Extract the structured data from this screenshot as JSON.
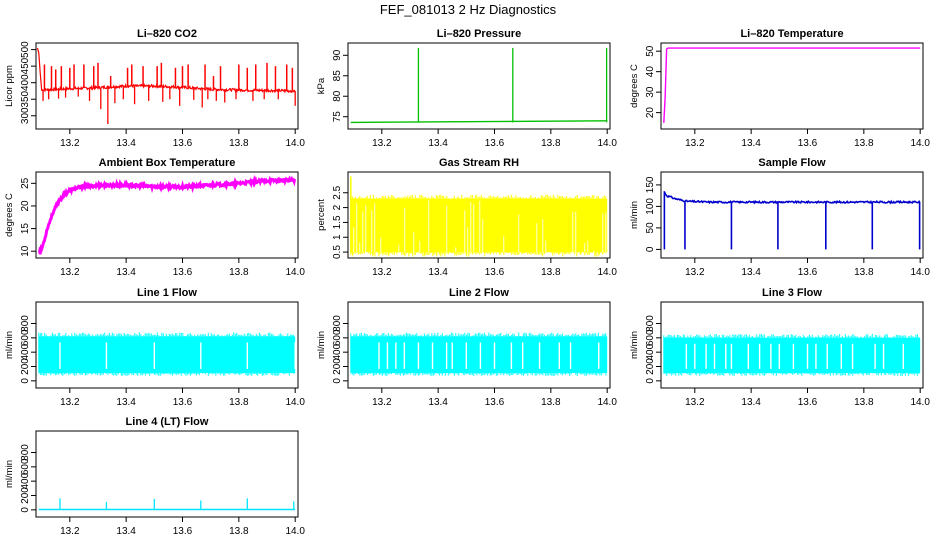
{
  "figure_title": "FEF_081013  2 Hz Diagnostics",
  "chart_data": [
    {
      "name": "li820-co2-panel",
      "type": "line",
      "title": "Li–820 CO2",
      "ylabel": "Licor ppm",
      "color": "#ff0000",
      "xlim": [
        13.08,
        14.01
      ],
      "ylim": [
        260,
        520
      ],
      "x_ticks": [
        13.2,
        13.4,
        13.6,
        13.8,
        14.0
      ],
      "x_tick_labels": [
        "13.2",
        "13.4",
        "13.6",
        "13.8",
        "14.0"
      ],
      "y_ticks": [
        300,
        350,
        400,
        450,
        500
      ],
      "y_tick_labels": [
        "300",
        "350",
        "400",
        "450",
        "500"
      ],
      "series": {
        "start": [
          [
            13.085,
            505
          ],
          [
            13.09,
            490
          ],
          [
            13.095,
            430
          ],
          [
            13.1,
            380
          ]
        ],
        "baseline": [
          [
            13.1,
            378
          ],
          [
            13.2,
            382
          ],
          [
            13.3,
            385
          ],
          [
            13.4,
            390
          ],
          [
            13.5,
            390
          ],
          [
            13.6,
            386
          ],
          [
            13.7,
            380
          ],
          [
            13.8,
            378
          ],
          [
            14.0,
            375
          ]
        ],
        "spikes": [
          [
            13.11,
            455
          ],
          [
            13.135,
            450
          ],
          [
            13.15,
            440
          ],
          [
            13.17,
            450
          ],
          [
            13.2,
            445
          ],
          [
            13.215,
            455
          ],
          [
            13.25,
            455
          ],
          [
            13.285,
            450
          ],
          [
            13.3,
            460
          ],
          [
            13.345,
            420
          ],
          [
            13.405,
            445
          ],
          [
            13.42,
            455
          ],
          [
            13.46,
            450
          ],
          [
            13.51,
            450
          ],
          [
            13.525,
            460
          ],
          [
            13.575,
            445
          ],
          [
            13.6,
            450
          ],
          [
            13.62,
            455
          ],
          [
            13.68,
            455
          ],
          [
            13.71,
            420
          ],
          [
            13.735,
            450
          ],
          [
            13.8,
            455
          ],
          [
            13.83,
            445
          ],
          [
            13.86,
            455
          ],
          [
            13.9,
            460
          ],
          [
            13.93,
            450
          ],
          [
            13.97,
            455
          ],
          [
            13.99,
            445
          ]
        ],
        "dips": [
          [
            13.105,
            345
          ],
          [
            13.125,
            350
          ],
          [
            13.16,
            352
          ],
          [
            13.185,
            355
          ],
          [
            13.23,
            358
          ],
          [
            13.27,
            345
          ],
          [
            13.31,
            320
          ],
          [
            13.335,
            275
          ],
          [
            13.36,
            338
          ],
          [
            13.39,
            350
          ],
          [
            13.43,
            335
          ],
          [
            13.48,
            345
          ],
          [
            13.53,
            342
          ],
          [
            13.555,
            350
          ],
          [
            13.59,
            330
          ],
          [
            13.64,
            348
          ],
          [
            13.67,
            325
          ],
          [
            13.69,
            350
          ],
          [
            13.72,
            345
          ],
          [
            13.75,
            340
          ],
          [
            13.79,
            350
          ],
          [
            13.85,
            345
          ],
          [
            13.89,
            350
          ],
          [
            13.94,
            350
          ],
          [
            14.0,
            330
          ]
        ]
      }
    },
    {
      "name": "li820-pressure-panel",
      "type": "line",
      "title": "Li–820 Pressure",
      "ylabel": "kPa",
      "color": "#00c000",
      "xlim": [
        13.08,
        14.01
      ],
      "ylim": [
        72,
        93
      ],
      "x_ticks": [
        13.2,
        13.4,
        13.6,
        13.8,
        14.0
      ],
      "x_tick_labels": [
        "13.2",
        "13.4",
        "13.6",
        "13.8",
        "14.0"
      ],
      "y_ticks": [
        75,
        80,
        85,
        90
      ],
      "y_tick_labels": [
        "75",
        "80",
        "85",
        "90"
      ],
      "series": {
        "baseline": [
          [
            13.09,
            73.6
          ],
          [
            14.0,
            74.0
          ]
        ],
        "spikes": [
          [
            13.33,
            91.8
          ],
          [
            13.665,
            91.8
          ],
          [
            13.998,
            91.8
          ]
        ]
      }
    },
    {
      "name": "li820-temperature-panel",
      "type": "line",
      "title": "Li–820 Temperature",
      "ylabel": "degrees C",
      "color": "#ff00ff",
      "xlim": [
        13.08,
        14.01
      ],
      "ylim": [
        12,
        54
      ],
      "x_ticks": [
        13.2,
        13.4,
        13.6,
        13.8,
        14.0
      ],
      "x_tick_labels": [
        "13.2",
        "13.4",
        "13.6",
        "13.8",
        "14.0"
      ],
      "y_ticks": [
        20,
        30,
        40,
        50
      ],
      "y_tick_labels": [
        "20",
        "30",
        "40",
        "50"
      ],
      "series": {
        "points": [
          [
            13.09,
            15
          ],
          [
            13.095,
            28
          ],
          [
            13.1,
            51
          ],
          [
            13.105,
            51.5
          ],
          [
            14.0,
            51.5
          ]
        ]
      }
    },
    {
      "name": "ambient-box-temperature-panel",
      "type": "line",
      "title": "Ambient Box Temperature",
      "ylabel": "degrees C",
      "color": "#ff00ff",
      "xlim": [
        13.08,
        14.01
      ],
      "ylim": [
        8.5,
        27.5
      ],
      "x_ticks": [
        13.2,
        13.4,
        13.6,
        13.8,
        14.0
      ],
      "x_tick_labels": [
        "13.2",
        "13.4",
        "13.6",
        "13.8",
        "14.0"
      ],
      "y_ticks": [
        10,
        15,
        20,
        25
      ],
      "y_tick_labels": [
        "10",
        "15",
        "20",
        "25"
      ],
      "series": {
        "points": [
          [
            13.09,
            9.8
          ],
          [
            13.1,
            10.5
          ],
          [
            13.11,
            12.5
          ],
          [
            13.12,
            15
          ],
          [
            13.14,
            18.5
          ],
          [
            13.16,
            21
          ],
          [
            13.18,
            22.5
          ],
          [
            13.2,
            23.5
          ],
          [
            13.25,
            24.3
          ],
          [
            13.3,
            24.5
          ],
          [
            13.4,
            24.6
          ],
          [
            13.5,
            24.3
          ],
          [
            13.6,
            24.2
          ],
          [
            13.7,
            24.6
          ],
          [
            13.8,
            25
          ],
          [
            13.9,
            25.6
          ],
          [
            14.0,
            25.7
          ]
        ]
      }
    },
    {
      "name": "gas-stream-rh-panel",
      "type": "band",
      "title": "Gas Stream RH",
      "ylabel": "percent",
      "color": "#ffff00",
      "xlim": [
        13.08,
        14.01
      ],
      "ylim": [
        0.3,
        3.2
      ],
      "x_ticks": [
        13.2,
        13.4,
        13.6,
        13.8,
        14.0
      ],
      "x_tick_labels": [
        "13.2",
        "13.4",
        "13.6",
        "13.8",
        "14.0"
      ],
      "y_ticks": [
        0.5,
        1.0,
        1.5,
        2.0,
        2.5
      ],
      "y_tick_labels": [
        "0.5",
        "1",
        "1.5",
        "2",
        "2.5"
      ],
      "series": {
        "upper": 2.3,
        "lower": 0.5,
        "x_range": [
          13.09,
          14.0
        ],
        "peak": [
          13.09,
          3.05
        ]
      }
    },
    {
      "name": "sample-flow-panel",
      "type": "line",
      "title": "Sample Flow",
      "ylabel": "ml/min",
      "color": "#0000cc",
      "xlim": [
        13.08,
        14.01
      ],
      "ylim": [
        -20,
        180
      ],
      "x_ticks": [
        13.2,
        13.4,
        13.6,
        13.8,
        14.0
      ],
      "x_tick_labels": [
        "13.2",
        "13.4",
        "13.6",
        "13.8",
        "14.0"
      ],
      "y_ticks": [
        0,
        50,
        100,
        150
      ],
      "y_tick_labels": [
        "0",
        "50",
        "100",
        "150"
      ],
      "series": {
        "points": [
          [
            13.09,
            135
          ],
          [
            13.1,
            125
          ],
          [
            13.13,
            118
          ],
          [
            13.17,
            112
          ],
          [
            13.25,
            110
          ],
          [
            14.0,
            110
          ]
        ],
        "dips": [
          13.092,
          13.165,
          13.33,
          13.495,
          13.665,
          13.83,
          13.998
        ]
      }
    },
    {
      "name": "line1-flow-panel",
      "type": "band",
      "title": "Line 1 Flow",
      "ylabel": "ml/min",
      "color": "#00ffff",
      "xlim": [
        13.08,
        14.01
      ],
      "ylim": [
        -100,
        1100
      ],
      "x_ticks": [
        13.2,
        13.4,
        13.6,
        13.8,
        14.0
      ],
      "x_tick_labels": [
        "13.2",
        "13.4",
        "13.6",
        "13.8",
        "14.0"
      ],
      "y_ticks": [
        0,
        200,
        400,
        600,
        800
      ],
      "y_tick_labels": [
        "0",
        "200",
        "400",
        "600",
        "800"
      ],
      "series": {
        "upper": 620,
        "lower": 110,
        "x_range": [
          13.09,
          14.0
        ],
        "gaps": [
          13.165,
          13.33,
          13.5,
          13.665,
          13.83,
          14.0
        ]
      }
    },
    {
      "name": "line2-flow-panel",
      "type": "band",
      "title": "Line 2 Flow",
      "ylabel": "ml/min",
      "color": "#00ffff",
      "xlim": [
        13.08,
        14.01
      ],
      "ylim": [
        -100,
        1100
      ],
      "x_ticks": [
        13.2,
        13.4,
        13.6,
        13.8,
        14.0
      ],
      "x_tick_labels": [
        "13.2",
        "13.4",
        "13.6",
        "13.8",
        "14.0"
      ],
      "y_ticks": [
        0,
        200,
        400,
        600,
        800
      ],
      "y_tick_labels": [
        "0",
        "200",
        "400",
        "600",
        "800"
      ],
      "series": {
        "upper": 620,
        "lower": 110,
        "x_range": [
          13.09,
          14.0
        ],
        "gaps": [
          13.19,
          13.22,
          13.25,
          13.28,
          13.33,
          13.38,
          13.43,
          13.45,
          13.5,
          13.55,
          13.6,
          13.66,
          13.7,
          13.76,
          13.83,
          13.87,
          13.97
        ]
      }
    },
    {
      "name": "line3-flow-panel",
      "type": "band",
      "title": "Line 3 Flow",
      "ylabel": "ml/min",
      "color": "#00ffff",
      "xlim": [
        13.08,
        14.01
      ],
      "ylim": [
        -100,
        1100
      ],
      "x_ticks": [
        13.2,
        13.4,
        13.6,
        13.8,
        14.0
      ],
      "x_tick_labels": [
        "13.2",
        "13.4",
        "13.6",
        "13.8",
        "14.0"
      ],
      "y_ticks": [
        0,
        200,
        400,
        600,
        800
      ],
      "y_tick_labels": [
        "0",
        "200",
        "400",
        "600",
        "800"
      ],
      "series": {
        "upper": 600,
        "lower": 110,
        "x_range": [
          13.09,
          14.0
        ],
        "gaps": [
          13.17,
          13.2,
          13.24,
          13.27,
          13.31,
          13.33,
          13.39,
          13.43,
          13.47,
          13.5,
          13.55,
          13.6,
          13.63,
          13.67,
          13.72,
          13.76,
          13.84,
          13.87,
          13.94
        ]
      }
    },
    {
      "name": "line4-lt-flow-panel",
      "type": "line",
      "title": "Line 4 (LT) Flow",
      "ylabel": "ml/min",
      "color": "#00e5ff",
      "xlim": [
        13.08,
        14.01
      ],
      "ylim": [
        -100,
        1100
      ],
      "x_ticks": [
        13.2,
        13.4,
        13.6,
        13.8,
        14.0
      ],
      "x_tick_labels": [
        "13.2",
        "13.4",
        "13.6",
        "13.8",
        "14.0"
      ],
      "y_ticks": [
        0,
        200,
        400,
        600,
        800
      ],
      "y_tick_labels": [
        "0",
        "200",
        "400",
        "600",
        "800"
      ],
      "series": {
        "baseline": [
          [
            13.09,
            5
          ],
          [
            14.0,
            5
          ]
        ],
        "spikes": [
          [
            13.165,
            160
          ],
          [
            13.33,
            110
          ],
          [
            13.5,
            150
          ],
          [
            13.665,
            130
          ],
          [
            13.83,
            160
          ],
          [
            13.995,
            120
          ]
        ]
      }
    }
  ]
}
